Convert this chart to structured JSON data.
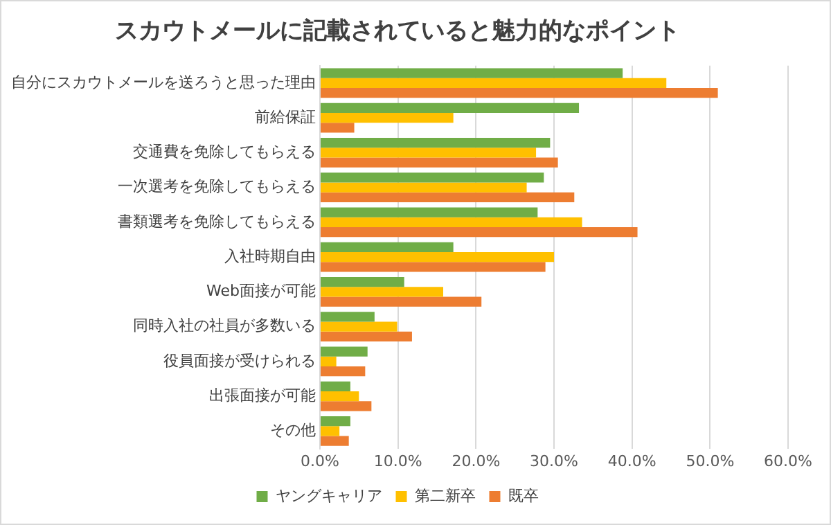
{
  "chart_data": {
    "type": "bar",
    "orientation": "horizontal",
    "title": "スカウトメールに記載されていると魅力的なポイント",
    "categories": [
      "自分にスカウトメールを送ろうと思った理由",
      "前給保証",
      "交通費を免除してもらえる",
      "一次選考を免除してもらえる",
      "書類選考を免除してもらえる",
      "入社時期自由",
      "Web面接が可能",
      "同時入社の社員が多数いる",
      "役員面接が受けられる",
      "出張面接が可能",
      "その他"
    ],
    "series": [
      {
        "name": "ヤングキャリア",
        "color": "#70ad47",
        "values": [
          38.8,
          33.2,
          29.5,
          28.7,
          27.9,
          17.1,
          10.8,
          7.0,
          6.1,
          3.9,
          3.9
        ]
      },
      {
        "name": "第二新卒",
        "color": "#ffc000",
        "values": [
          44.4,
          17.1,
          27.7,
          26.5,
          33.6,
          30.0,
          15.8,
          9.9,
          2.1,
          5.0,
          2.5
        ]
      },
      {
        "name": "既卒",
        "color": "#ed7d31",
        "values": [
          51.0,
          4.4,
          30.5,
          32.6,
          40.7,
          28.9,
          20.7,
          11.8,
          5.8,
          6.6,
          3.7
        ]
      }
    ],
    "xlim": [
      0,
      60
    ],
    "xticks": [
      {
        "value": 0,
        "label": "0.0%"
      },
      {
        "value": 10,
        "label": "10.0%"
      },
      {
        "value": 20,
        "label": "20.0%"
      },
      {
        "value": 30,
        "label": "30.0%"
      },
      {
        "value": 40,
        "label": "40.0%"
      },
      {
        "value": 50,
        "label": "50.0%"
      },
      {
        "value": 60,
        "label": "60.0%"
      }
    ],
    "grid": "x",
    "legend": "bottom"
  }
}
